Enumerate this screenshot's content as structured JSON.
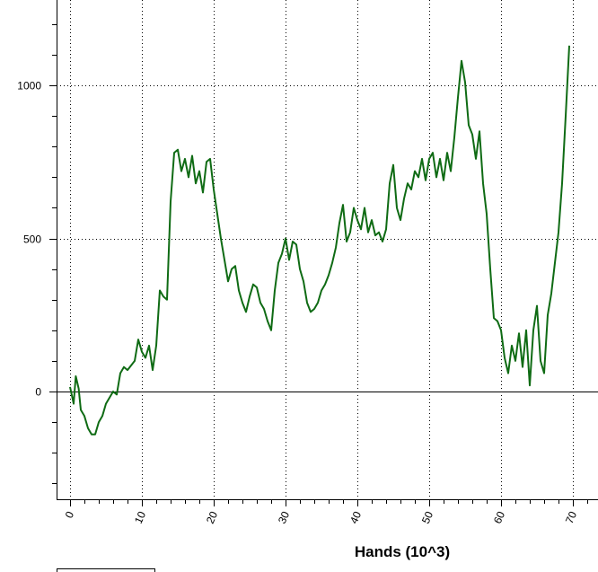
{
  "chart_data": {
    "type": "line",
    "x_label": "Hands (10^3)",
    "x": [
      0,
      0.5,
      0.8,
      1.2,
      1.5,
      2,
      2.5,
      3,
      3.5,
      4,
      4.5,
      5,
      6,
      6.5,
      7,
      7.5,
      8,
      9,
      9.5,
      10,
      10.5,
      11,
      11.5,
      12,
      12.5,
      13,
      13.5,
      14,
      14.5,
      15,
      15.5,
      16,
      16.5,
      17,
      17.5,
      18,
      18.5,
      19,
      19.5,
      20,
      20.5,
      21,
      21.5,
      22,
      22.5,
      23,
      23.5,
      24,
      24.5,
      25,
      25.5,
      26,
      26.5,
      27,
      27.5,
      28,
      28.5,
      29,
      29.5,
      30,
      30.5,
      31,
      31.5,
      32,
      32.5,
      33,
      33.5,
      34,
      34.5,
      35,
      35.5,
      36,
      36.5,
      37,
      37.5,
      38,
      38.5,
      39,
      39.5,
      40,
      40.5,
      41,
      41.5,
      42,
      42.5,
      43,
      43.5,
      44,
      44.5,
      45,
      45.5,
      46,
      46.5,
      47,
      47.5,
      48,
      48.5,
      49,
      49.5,
      50,
      50.5,
      51,
      51.5,
      52,
      52.5,
      53,
      53.5,
      54,
      54.5,
      55,
      55.5,
      56,
      56.5,
      57,
      57.5,
      58,
      58.5,
      59,
      59.5,
      60,
      60.5,
      61,
      61.5,
      62,
      62.5,
      63,
      63.5,
      64,
      64.5,
      65,
      65.5,
      66,
      66.5,
      67,
      67.5,
      68,
      68.5,
      69,
      69.5
    ],
    "series": [
      {
        "color": "#0f6b14",
        "values": [
          15,
          -40,
          50,
          10,
          -60,
          -80,
          -120,
          -140,
          -140,
          -100,
          -80,
          -40,
          0,
          -10,
          60,
          80,
          70,
          100,
          170,
          130,
          110,
          150,
          70,
          150,
          330,
          310,
          300,
          620,
          780,
          790,
          720,
          760,
          700,
          770,
          680,
          720,
          650,
          750,
          760,
          660,
          580,
          500,
          430,
          360,
          400,
          410,
          330,
          290,
          260,
          310,
          350,
          340,
          290,
          270,
          230,
          200,
          330,
          420,
          450,
          500,
          430,
          490,
          480,
          400,
          360,
          290,
          260,
          270,
          290,
          330,
          350,
          380,
          420,
          470,
          550,
          610,
          490,
          520,
          600,
          560,
          530,
          600,
          520,
          560,
          510,
          520,
          490,
          530,
          680,
          740,
          600,
          560,
          630,
          680,
          660,
          720,
          700,
          760,
          690,
          760,
          780,
          700,
          760,
          690,
          780,
          720,
          830,
          960,
          1080,
          1010,
          870,
          840,
          760,
          850,
          680,
          580,
          400,
          240,
          230,
          200,
          110,
          60,
          150,
          100,
          190,
          80,
          200,
          20,
          200,
          280,
          100,
          60,
          250,
          320,
          420,
          520,
          680,
          900,
          1130
        ]
      }
    ],
    "xlim": [
      -1.875,
      73.5
    ],
    "ylim": [
      -352,
      1279
    ],
    "xticks": [
      0,
      10,
      20,
      30,
      40,
      50,
      60,
      70
    ],
    "yticks": [
      0,
      500,
      1000
    ],
    "grid": true,
    "zero_line": true
  }
}
